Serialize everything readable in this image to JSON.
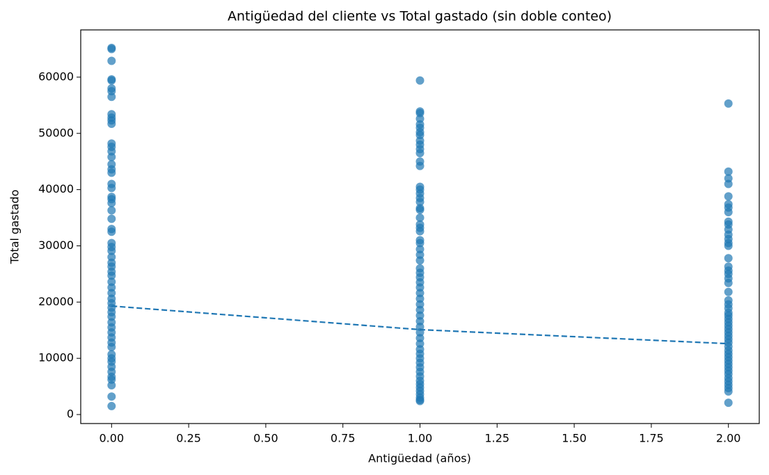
{
  "chart_data": {
    "type": "scatter",
    "title": "Antigüedad del cliente vs Total gastado (sin doble conteo)",
    "x_label": "Antigüedad (años)",
    "y_label": "Total gastado",
    "xlim": [
      -0.1,
      2.1
    ],
    "ylim": [
      -1600,
      68400
    ],
    "xticks": [
      {
        "value": 0,
        "label": "0.00"
      },
      {
        "value": 0.25,
        "label": "0.25"
      },
      {
        "value": 0.5,
        "label": "0.50"
      },
      {
        "value": 0.75,
        "label": "0.75"
      },
      {
        "value": 1,
        "label": "1.00"
      },
      {
        "value": 1.25,
        "label": "1.25"
      },
      {
        "value": 1.5,
        "label": "1.50"
      },
      {
        "value": 1.75,
        "label": "1.75"
      },
      {
        "value": 2,
        "label": "2.00"
      }
    ],
    "yticks": [
      0,
      10000,
      20000,
      30000,
      40000,
      50000,
      60000
    ],
    "grid": false,
    "series": [
      {
        "color": "#1f77b4",
        "x": [
          0,
          0,
          0,
          0,
          0,
          0,
          0,
          0,
          0,
          0,
          0,
          0,
          0,
          0,
          0,
          0,
          0,
          0,
          0,
          0,
          0,
          0,
          0,
          0,
          0,
          0,
          0,
          0,
          0,
          0,
          0,
          0,
          0,
          0,
          0,
          0,
          0,
          0,
          0,
          0,
          0,
          0,
          0,
          0,
          0,
          0,
          0,
          0,
          0,
          0,
          0,
          0,
          0,
          0,
          0,
          0,
          0,
          0,
          0,
          0,
          1,
          1,
          1,
          1,
          1,
          1,
          1,
          1,
          1,
          1,
          1,
          1,
          1,
          1,
          1,
          1,
          1,
          1,
          1,
          1,
          1,
          1,
          1,
          1,
          1,
          1,
          1,
          1,
          1,
          1,
          1,
          1,
          1,
          1,
          1,
          1,
          1,
          1,
          1,
          1,
          1,
          1,
          1,
          1,
          1,
          1,
          1,
          1,
          1,
          1,
          1,
          1,
          1,
          1,
          1,
          1,
          1,
          1,
          1,
          1,
          2,
          2,
          2,
          2,
          2,
          2,
          2,
          2,
          2,
          2,
          2,
          2,
          2,
          2,
          2,
          2,
          2,
          2,
          2,
          2,
          2,
          2,
          2,
          2,
          2,
          2,
          2,
          2,
          2,
          2,
          2,
          2,
          2,
          2,
          2,
          2,
          2,
          2,
          2,
          2,
          2,
          2,
          2,
          2,
          2,
          2,
          2,
          2,
          2,
          2
        ],
        "values": [
          65200,
          65000,
          62900,
          59600,
          59400,
          58000,
          57500,
          56500,
          53400,
          52800,
          52300,
          51700,
          48200,
          47600,
          46800,
          45800,
          44500,
          43600,
          43000,
          41000,
          40300,
          38700,
          38300,
          37600,
          36300,
          34800,
          33000,
          32500,
          30500,
          29800,
          29100,
          28000,
          27000,
          26300,
          25400,
          24700,
          23600,
          22600,
          21600,
          20600,
          19800,
          19000,
          18200,
          17400,
          16400,
          15500,
          14600,
          13700,
          12800,
          12000,
          10700,
          10000,
          9400,
          8500,
          7600,
          6700,
          6200,
          5200,
          3200,
          1500,
          59400,
          53900,
          53600,
          52600,
          51600,
          51000,
          50200,
          49700,
          48700,
          48000,
          47200,
          46500,
          45000,
          44200,
          40500,
          40000,
          39300,
          38500,
          37800,
          36700,
          36400,
          35000,
          33800,
          33200,
          32600,
          31000,
          30500,
          29400,
          28400,
          27400,
          26000,
          25200,
          24400,
          23500,
          22600,
          21600,
          20600,
          19600,
          18600,
          17600,
          16600,
          15600,
          14600,
          13600,
          12600,
          11600,
          10800,
          10000,
          9200,
          8400,
          7600,
          6800,
          6000,
          5400,
          4800,
          4200,
          3600,
          3000,
          2600,
          2400,
          55300,
          43200,
          42000,
          41000,
          38800,
          37400,
          36800,
          36000,
          34300,
          33800,
          32900,
          32000,
          31200,
          30500,
          30000,
          27800,
          26300,
          25600,
          25000,
          24200,
          23400,
          21800,
          20300,
          19600,
          18900,
          18100,
          17600,
          17000,
          16400,
          15800,
          15200,
          14600,
          14000,
          13400,
          12800,
          12100,
          11400,
          10800,
          10200,
          9600,
          9000,
          8400,
          7800,
          7200,
          6500,
          5900,
          5300,
          4700,
          4100,
          2100
        ]
      }
    ],
    "trend": {
      "color": "#1f77b4",
      "dashed": true,
      "x": [
        0,
        1,
        2
      ],
      "values": [
        19300,
        15100,
        12600
      ]
    }
  }
}
